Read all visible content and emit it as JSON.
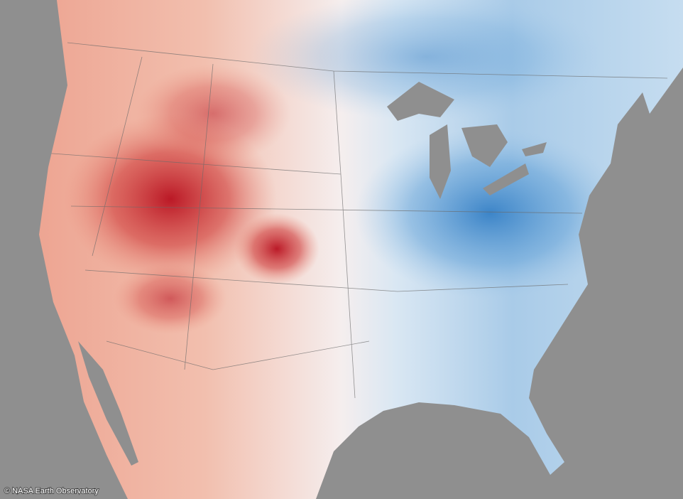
{
  "credit": "© NASA Earth Observatory"
}
